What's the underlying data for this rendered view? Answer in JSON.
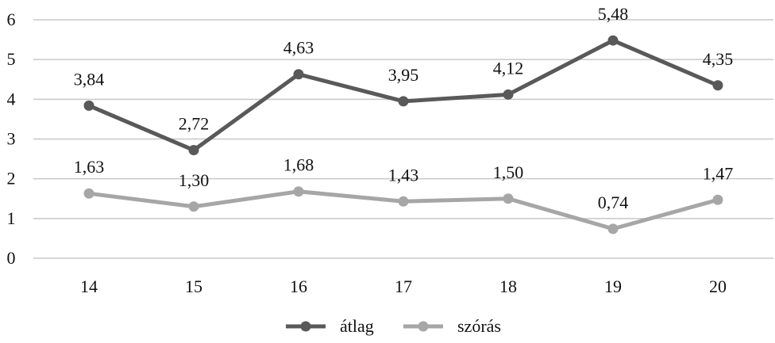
{
  "chart_data": {
    "type": "line",
    "categories": [
      "14",
      "15",
      "16",
      "17",
      "18",
      "19",
      "20"
    ],
    "series": [
      {
        "name": "átlag",
        "values": [
          3.84,
          2.72,
          4.63,
          3.95,
          4.12,
          5.48,
          4.35
        ],
        "labels": [
          "3,84",
          "2,72",
          "4,63",
          "3,95",
          "4,12",
          "5,48",
          "4,35"
        ],
        "color": "#595959"
      },
      {
        "name": "szórás",
        "values": [
          1.63,
          1.3,
          1.68,
          1.43,
          1.5,
          0.74,
          1.47
        ],
        "labels": [
          "1,63",
          "1,30",
          "1,68",
          "1,43",
          "1,50",
          "0,74",
          "1,47"
        ],
        "color": "#a6a6a6"
      }
    ],
    "y_ticks": [
      "0",
      "1",
      "2",
      "3",
      "4",
      "5",
      "6"
    ],
    "ylim": [
      0,
      6
    ],
    "grid": true,
    "legend_position": "bottom"
  }
}
